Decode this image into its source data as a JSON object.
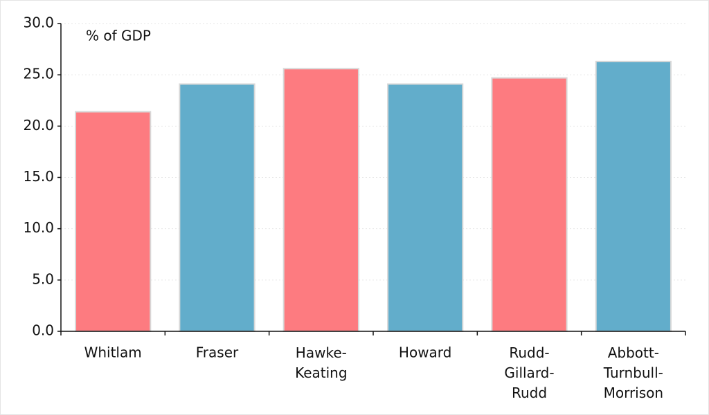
{
  "chart_data": {
    "type": "bar",
    "annotation": "% of GDP",
    "categories": [
      "Whitlam",
      "Fraser",
      "Hawke-\nKeating",
      "Howard",
      "Rudd-\nGillard-\nRudd",
      "Abbott-\nTurnbull-\nMorrison"
    ],
    "values": [
      21.4,
      24.1,
      25.6,
      24.1,
      24.7,
      26.3
    ],
    "colors": [
      "#fd7b80",
      "#62adcb",
      "#fd7b80",
      "#62adcb",
      "#fd7b80",
      "#62adcb"
    ],
    "ylim": [
      0,
      30
    ],
    "yticks": [
      {
        "value": 0,
        "label": "0.0"
      },
      {
        "value": 5,
        "label": "5.0"
      },
      {
        "value": 10,
        "label": "10.0"
      },
      {
        "value": 15,
        "label": "15.0"
      },
      {
        "value": 20,
        "label": "20.0"
      },
      {
        "value": 25,
        "label": "25.0"
      },
      {
        "value": 30,
        "label": "30.0"
      }
    ],
    "grid": true
  }
}
